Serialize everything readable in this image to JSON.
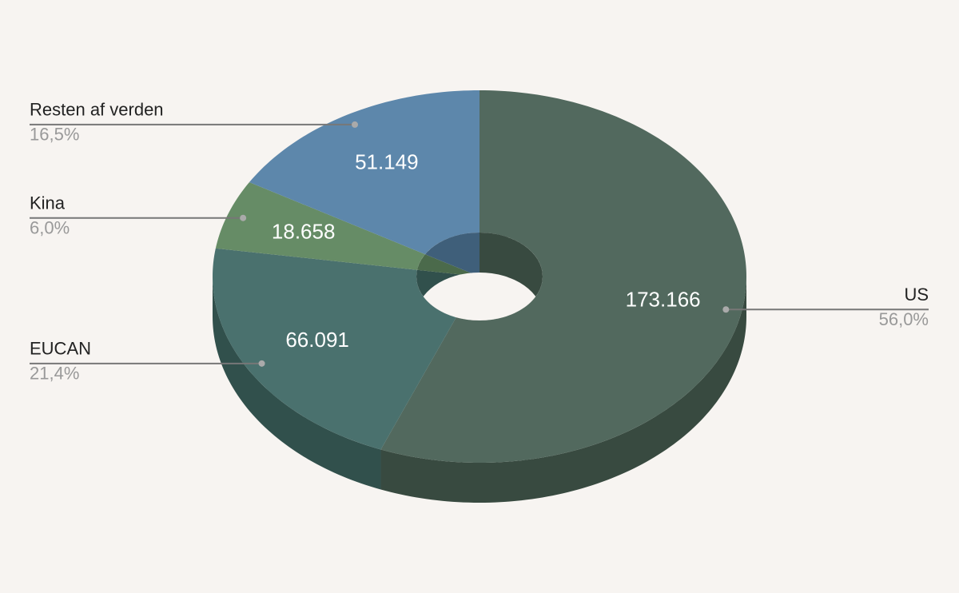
{
  "chart_data": {
    "type": "pie",
    "categories": [
      "US",
      "EUCAN",
      "Kina",
      "Resten af verden"
    ],
    "values": [
      173166,
      66091,
      18658,
      51149
    ],
    "value_labels": [
      "173.166",
      "66.091",
      "18.658",
      "51.149"
    ],
    "percent_labels": [
      "56,0%",
      "21,4%",
      "6,0%",
      "16,5%"
    ],
    "colors": [
      "#52695e",
      "#4a716e",
      "#668c66",
      "#5d87ab"
    ],
    "side_colors": [
      "#384a40",
      "#31504c",
      "#4b6a4b",
      "#3f5f7a"
    ],
    "donut": true,
    "three_d": true
  }
}
